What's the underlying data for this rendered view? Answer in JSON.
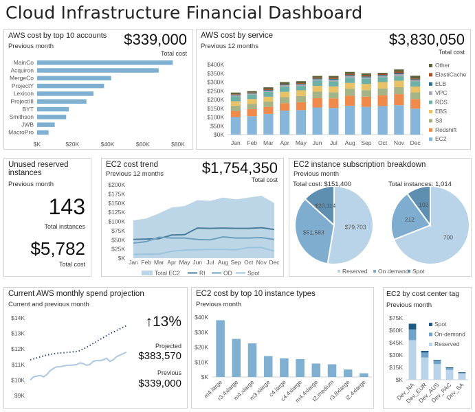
{
  "title": "Cloud Infrastructure Financial Dashboard",
  "panels": {
    "accounts": {
      "title": "AWS cost by top 10 accounts",
      "subtitle": "Previous month",
      "total": "$339,000",
      "total_label": "Total cost"
    },
    "service": {
      "title": "AWS cost by service",
      "subtitle": "Previous 12 months",
      "total": "$3,830,050",
      "total_label": "Total cost"
    },
    "unused": {
      "title": "Unused reserved instances",
      "subtitle": "Previous month",
      "instances": "143",
      "instances_label": "Total instances",
      "cost": "$5,782",
      "cost_label": "Total cost"
    },
    "ec2trend": {
      "title": "EC2 cost trend",
      "subtitle": "Previous 12 months",
      "total": "$1,754,350",
      "total_label": "Total cost"
    },
    "subscription": {
      "title": "EC2 instance subscription breakdown",
      "subtitle": "Previous month",
      "cost_label": "Total cost: $151,400",
      "instances_label": "Total instances: 1,014"
    },
    "projection": {
      "title": "Current AWS monthly spend projection",
      "subtitle": "Current and previous month",
      "change": "↑13%",
      "projected_label": "Projected",
      "projected": "$383,570",
      "previous_label": "Previous",
      "previous": "$339,000"
    },
    "instancetypes": {
      "title": "EC2 cost by top 10 instance types",
      "subtitle": "Previous month"
    },
    "costcenter": {
      "title": "EC2 by cost center tag",
      "subtitle": "Previous month"
    }
  },
  "chart_data": [
    {
      "id": "accounts",
      "type": "bar",
      "orientation": "horizontal",
      "categories": [
        "MainCo",
        "Acquiron",
        "MergeCo",
        "ProjectY",
        "Lexicon",
        "ProjectIII",
        "BYT",
        "Smithson",
        "JWB",
        "MacroPro"
      ],
      "values": [
        77,
        69,
        42,
        38,
        32,
        28,
        18,
        16.5,
        10,
        6.5
      ],
      "unit": "$K",
      "xlim": [
        0,
        80
      ],
      "ticks": [
        "$K",
        "$20K",
        "$40K",
        "$60K",
        "$80K"
      ],
      "color": "#7fb0d2"
    },
    {
      "id": "service",
      "type": "bar",
      "stacked": true,
      "categories": [
        "Jan",
        "Feb",
        "Mar",
        "Apr",
        "May",
        "Jun",
        "Jul",
        "Aug",
        "Sep",
        "Oct",
        "Nov",
        "Dec"
      ],
      "ylim": [
        0,
        400
      ],
      "unit": "$K",
      "ticks": [
        "$0K",
        "$50K",
        "$100K",
        "$150K",
        "$200K",
        "$250K",
        "$300K",
        "$350K",
        "$400K"
      ],
      "legend": "right",
      "series": [
        {
          "name": "EC2",
          "color": "#86b7da",
          "values": [
            100,
            105,
            118,
            137,
            140,
            155,
            152,
            165,
            158,
            163,
            168,
            148
          ]
        },
        {
          "name": "Redshift",
          "color": "#ef8a4b",
          "values": [
            35,
            40,
            40,
            42,
            45,
            53,
            55,
            57,
            58,
            62,
            63,
            55
          ]
        },
        {
          "name": "S3",
          "color": "#a5b487",
          "values": [
            30,
            30,
            30,
            35,
            35,
            37,
            35,
            40,
            38,
            38,
            40,
            38
          ]
        },
        {
          "name": "EBS",
          "color": "#e9c166",
          "values": [
            25,
            28,
            28,
            30,
            33,
            33,
            33,
            33,
            35,
            37,
            37,
            33
          ]
        },
        {
          "name": "RDS",
          "color": "#6cb0a6",
          "values": [
            28,
            25,
            27,
            30,
            25,
            30,
            30,
            30,
            30,
            28,
            25,
            30
          ]
        },
        {
          "name": "VPC",
          "color": "#a8a8b0",
          "values": [
            7,
            6,
            8,
            8,
            8,
            8,
            8,
            10,
            8,
            8,
            12,
            8
          ]
        },
        {
          "name": "ELB",
          "color": "#2d6e8e",
          "values": [
            3,
            3,
            4,
            4,
            4,
            4,
            5,
            5,
            5,
            5,
            6,
            4
          ]
        },
        {
          "name": "ElastiCache",
          "color": "#a74f29",
          "values": [
            3,
            3,
            4,
            4,
            4,
            6,
            6,
            6,
            7,
            6,
            8,
            5
          ]
        },
        {
          "name": "Other",
          "color": "#5d6338",
          "values": [
            9,
            8,
            11,
            10,
            11,
            9,
            11,
            12,
            11,
            6,
            13,
            15
          ]
        }
      ]
    },
    {
      "id": "ec2trend",
      "type": "area",
      "categories": [
        "Jan",
        "Feb",
        "Mar",
        "Apr",
        "May",
        "Jun",
        "Jul",
        "Aug",
        "Sep",
        "Oct",
        "Nov",
        "Dec"
      ],
      "ylim": [
        0,
        200
      ],
      "unit": "$K",
      "ticks": [
        "$K",
        "$25K",
        "$50K",
        "$75K",
        "$100K",
        "$125K",
        "$150K",
        "$175K",
        "$200K"
      ],
      "legend": "bottom",
      "series": [
        {
          "name": "Total EC2",
          "kind": "area",
          "color": "#bcd5e7",
          "values": [
            103,
            108,
            122,
            138,
            142,
            158,
            156,
            165,
            160,
            165,
            170,
            150
          ]
        },
        {
          "name": "RI",
          "kind": "line",
          "color": "#4a7d9b",
          "values": [
            51,
            52,
            53,
            63,
            64,
            82,
            81,
            82,
            81,
            81,
            83,
            78
          ]
        },
        {
          "name": "OD",
          "kind": "line",
          "color": "#6e9fbe",
          "values": [
            41,
            45,
            57,
            55,
            55,
            51,
            50,
            58,
            55,
            55,
            56,
            51
          ]
        },
        {
          "name": "Spot",
          "kind": "line",
          "color": "#9cc3de",
          "values": [
            10,
            11,
            11,
            19,
            22,
            23,
            24,
            24,
            23,
            29,
            29,
            19
          ]
        }
      ]
    },
    {
      "id": "subscription",
      "type": "pie",
      "legend": "bottom",
      "categories": [
        "Reserved",
        "On demand",
        "Spot"
      ],
      "colors": [
        "#b9d4e8",
        "#7eadd0",
        "#5f8fb0"
      ],
      "pies": [
        {
          "name": "cost",
          "values": [
            79703,
            51583,
            20114
          ],
          "labels": [
            "$79,703",
            "$51,583",
            "$20,114"
          ]
        },
        {
          "name": "instances",
          "values": [
            700,
            212,
            102
          ],
          "labels": [
            "700",
            "212",
            "102"
          ]
        }
      ]
    },
    {
      "id": "projection",
      "type": "line",
      "ylim": [
        9,
        14
      ],
      "unit": "$K",
      "ticks": [
        "$9K",
        "$10K",
        "$11K",
        "$12K",
        "$13K",
        "$14K"
      ],
      "series": [
        {
          "kind": "dotted",
          "color": "#2b4f73",
          "values": [
            11.3,
            11.45,
            11.6,
            11.7,
            11.75,
            11.8,
            11.85,
            12.1,
            12.4,
            12.7,
            13.0,
            13.25,
            13.5
          ]
        },
        {
          "kind": "solid",
          "color": "#b2cbe0",
          "values": [
            10.0,
            10.2,
            10.25,
            10.3,
            10.2,
            10.35,
            10.6,
            10.75,
            10.85,
            10.85,
            10.9,
            10.95,
            10.95,
            10.97,
            11.0,
            11.1,
            11.05,
            10.95,
            11.0,
            11.2,
            11.25,
            11.25,
            11.3,
            11.4,
            11.2,
            11.3,
            11.5,
            11.6,
            11.7,
            11.8
          ]
        }
      ]
    },
    {
      "id": "instancetypes",
      "type": "bar",
      "categories": [
        "m4.large",
        "r3.4xlarge",
        "m4.xlarge",
        "m3.xlarge",
        "c4.large",
        "c4.4xlarge",
        "m4.4xlarge",
        "t2.medium",
        "r3.8xlarge",
        "i2.4xlarge"
      ],
      "values": [
        38,
        25.5,
        22.5,
        14,
        12.5,
        12,
        9,
        8.5,
        5,
        2.5
      ],
      "ylim": [
        0,
        40
      ],
      "unit": "$K",
      "ticks": [
        "$K",
        "$10K",
        "$20K",
        "$30K",
        "$40K"
      ],
      "color": "#7fb0d2"
    },
    {
      "id": "costcenter",
      "type": "bar",
      "stacked": true,
      "categories": [
        "Dev_NA",
        "Dev_EUR",
        "Dev_AUS",
        "Dev_PAC",
        "Dev_SA"
      ],
      "ylim": [
        0,
        75
      ],
      "unit": "$K",
      "ticks": [
        "$K",
        "$15K",
        "$30K",
        "$45K",
        "$60K",
        "$75K"
      ],
      "legend": "top-right",
      "series": [
        {
          "name": "Reserved",
          "color": "#b9d4e8",
          "values": [
            48,
            27,
            19,
            12,
            7.5
          ]
        },
        {
          "name": "On-demand",
          "color": "#6fa3c9",
          "values": [
            13,
            6,
            4,
            2,
            1
          ]
        },
        {
          "name": "Spot",
          "color": "#1f5b82",
          "values": [
            7,
            2,
            1,
            1,
            0.7
          ]
        }
      ]
    }
  ]
}
